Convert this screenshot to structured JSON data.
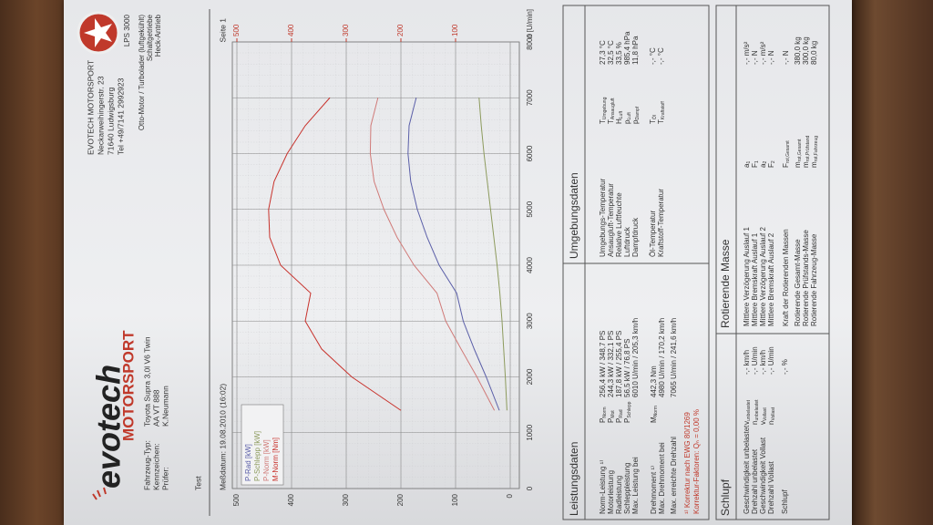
{
  "header": {
    "brand": "evotech",
    "brand_sub": "MOTORSPORT",
    "vehicle": [
      {
        "label": "Fahrzeug-Typ:",
        "value": "Toyota Supra 3,0l V6 Twin"
      },
      {
        "label": "Kennzeichen:",
        "value": "AA VT 888"
      },
      {
        "label": "Prüfer:",
        "value": "K.Neumann"
      }
    ],
    "test": "Test",
    "company": [
      "EVOTECH MOTORSPORT",
      "Neckarweihingerstr. 23",
      "71640 Ludwigsburg",
      "Tel +49/7141 2992923"
    ],
    "engine": [
      "Otto-Motor / Turbolader (luftgekühlt)",
      "Schaltgetriebe",
      "Heck-Antrieb"
    ],
    "badge": "LPS 3000",
    "date": "Meßdatum: 19.08.2010 (16:02)",
    "page": "Seite 1"
  },
  "chart_data": {
    "type": "line",
    "x_label": "n [U/min]",
    "x": [
      1400,
      2000,
      2500,
      3000,
      3500,
      4000,
      4500,
      5000,
      5500,
      6000,
      6500,
      7000
    ],
    "series": [
      {
        "name": "P-Rad [kW]",
        "color": "#5b5fa8",
        "axis": "y2",
        "values": [
          20,
          44,
          66,
          86,
          98,
          130,
          152,
          170,
          182,
          187,
          185,
          172
        ]
      },
      {
        "name": "P-Schlepp [kW]",
        "color": "#8c9a5c",
        "axis": "y2",
        "values": [
          6,
          9,
          12,
          15,
          19,
          24,
          30,
          36,
          42,
          48,
          53,
          57
        ]
      },
      {
        "name": "P-Norm [kW]",
        "color": "#d07a78",
        "axis": "y2",
        "values": [
          29,
          61,
          90,
          118,
          134,
          176,
          207,
          231,
          249,
          256,
          255,
          242
        ]
      },
      {
        "name": "M-Norm [Nm]",
        "color": "#c8322c",
        "values": [
          200,
          290,
          345,
          375,
          365,
          420,
          440,
          442,
          432,
          408,
          375,
          330
        ]
      }
    ],
    "xlim": [
      0,
      8000
    ],
    "xticks": [
      0,
      1000,
      2000,
      3000,
      4000,
      5000,
      6000,
      7000,
      8000
    ],
    "ylim": [
      0,
      500
    ],
    "yticks": [
      0,
      100,
      200,
      300,
      400,
      500
    ],
    "y2lim": [
      0,
      500
    ],
    "y2ticks": [
      100,
      200,
      300,
      400,
      500
    ],
    "grid": true,
    "legend": "top-left"
  },
  "performance": {
    "title": "Leistungsdaten",
    "rows": [
      {
        "label": "Norm-Leistung ¹⁾",
        "sym": "P",
        "sub": "Norm",
        "value": "256,4 kW / 348,7 PS"
      },
      {
        "label": "Motorleistung",
        "sym": "P",
        "sub": "Mot",
        "value": "244,3 kW / 332,1 PS"
      },
      {
        "label": "Radleistung",
        "sym": "P",
        "sub": "Rad",
        "value": "187,8 kW / 255,4 PS"
      },
      {
        "label": "Schleppleistung",
        "sym": "P",
        "sub": "Schlepp",
        "value": "56,5 kW / 76,8 PS"
      },
      {
        "label": "Max. Leistung bei",
        "sym": "",
        "sub": "",
        "value": "6010 U/min / 205,3 km/h"
      },
      {
        "label": "Drehmoment ¹⁾",
        "sym": "M",
        "sub": "Norm",
        "value": "442,3 Nm"
      },
      {
        "label": "Max. Drehmoment bei",
        "sym": "",
        "sub": "",
        "value": "4980 U/min / 170,2 km/h"
      },
      {
        "label": "Max. erreichte Drehzahl",
        "sym": "",
        "sub": "",
        "value": "7065 U/min / 241,6 km/h"
      }
    ],
    "notes": [
      "¹⁾ Korrektur nach EWG 80/1269",
      "Korrektur-Faktoren: Qₙ = 0,00 %"
    ]
  },
  "environment": {
    "title": "Umgebungsdaten",
    "rows": [
      {
        "label": "Umgebungs-Temperatur",
        "sym": "T",
        "sub": "Umgebung",
        "value": "27,3 °C"
      },
      {
        "label": "Ansaugluft-Temperatur",
        "sym": "T",
        "sub": "Ansaugluft",
        "value": "32,5 °C"
      },
      {
        "label": "Relative Luftfeuchte",
        "sym": "H",
        "sub": "Luft",
        "value": "33,5 %"
      },
      {
        "label": "Luftdruck",
        "sym": "p",
        "sub": "Luft",
        "value": "985,4 hPa"
      },
      {
        "label": "Dampfdruck",
        "sym": "p",
        "sub": "Dampf",
        "value": "11,8 hPa"
      },
      {
        "label": "Öl-Temperatur",
        "sym": "T",
        "sub": "Öl",
        "value": "-,- °C"
      },
      {
        "label": "Kraftstoff-Temperatur",
        "sym": "T",
        "sub": "Kraftstoff",
        "value": "-,- °C"
      }
    ]
  },
  "slip": {
    "title": "Schlupf",
    "rows": [
      {
        "label": "Geschwindigkeit unbelastet",
        "sym": "v",
        "sub": "unbelastet",
        "value": "-,- km/h"
      },
      {
        "label": "Drehzahl unbelastet",
        "sym": "n",
        "sub": "unbelastet",
        "value": "-,- U/min"
      },
      {
        "label": "Geschwindigkeit Vollast",
        "sym": "v",
        "sub": "Vollast",
        "value": "-,- km/h"
      },
      {
        "label": "Drehzahl Vollast",
        "sym": "n",
        "sub": "Vollast",
        "value": "-,- U/min"
      },
      {
        "label": "Schlupf",
        "sym": "",
        "sub": "",
        "value": "-,- %"
      }
    ]
  },
  "rotating": {
    "title": "Rotierende Masse",
    "rows": [
      {
        "label": "Mittlere Verzögerung Auslauf 1",
        "sym": "a",
        "sub": "1",
        "value": "-,- m/s²"
      },
      {
        "label": "Mittlere Bremskraft Auslauf 1",
        "sym": "F",
        "sub": "1",
        "value": "-,- N"
      },
      {
        "label": "Mittlere Verzögerung Auslauf 2",
        "sym": "a",
        "sub": "2",
        "value": "-,- m/s²"
      },
      {
        "label": "Mittlere Bremskraft Auslauf 2",
        "sym": "F",
        "sub": "2",
        "value": "-,- N"
      },
      {
        "label": "Kraft der Rotierenden Massen",
        "sym": "F",
        "sub": "rot,Gesamt",
        "value": "-,- N"
      },
      {
        "label": "Rotierende Gesamt-Masse",
        "sym": "m",
        "sub": "rot,Gesamt",
        "value": "380,0 kg"
      },
      {
        "label": "Rotierende Prüfstands-Masse",
        "sym": "m",
        "sub": "rot,Prüfstand",
        "value": "300,0 kg"
      },
      {
        "label": "Rotierende Fahrzeug-Masse",
        "sym": "m",
        "sub": "rot,Fahrzeug",
        "value": "80,0 kg"
      }
    ]
  }
}
